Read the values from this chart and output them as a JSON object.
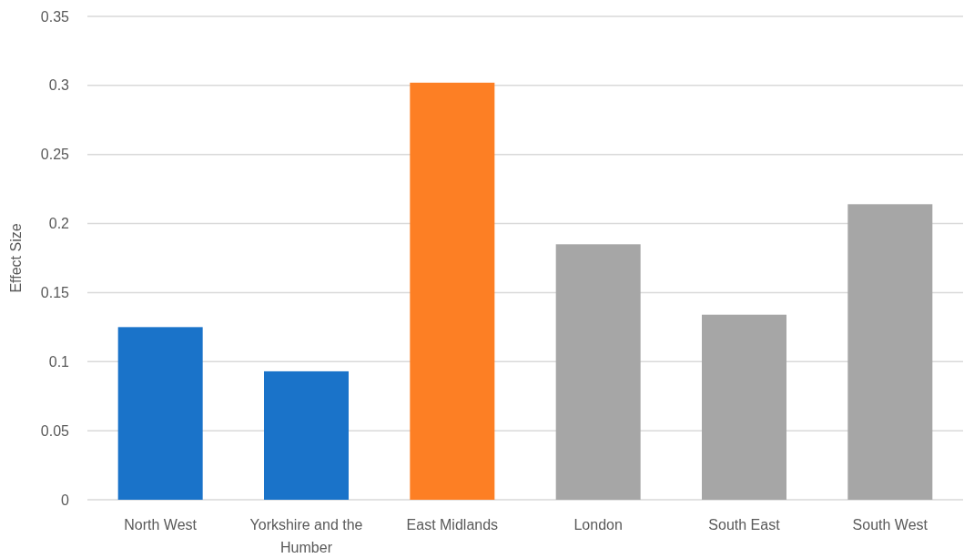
{
  "chart_data": {
    "type": "bar",
    "ylabel": "Effect Size",
    "categories": [
      "North West",
      "Yorkshire and the Humber",
      "East Midlands",
      "London",
      "South East",
      "South West"
    ],
    "values": [
      0.125,
      0.093,
      0.302,
      0.185,
      0.134,
      0.214
    ],
    "colors": [
      "#1a73c9",
      "#1a73c9",
      "#fd7f24",
      "#a6a6a6",
      "#a6a6a6",
      "#a6a6a6"
    ],
    "ylim": [
      0,
      0.35
    ],
    "yticks": [
      0,
      0.05,
      0.1,
      0.15,
      0.2,
      0.25,
      0.3,
      0.35
    ],
    "grid": "y"
  }
}
